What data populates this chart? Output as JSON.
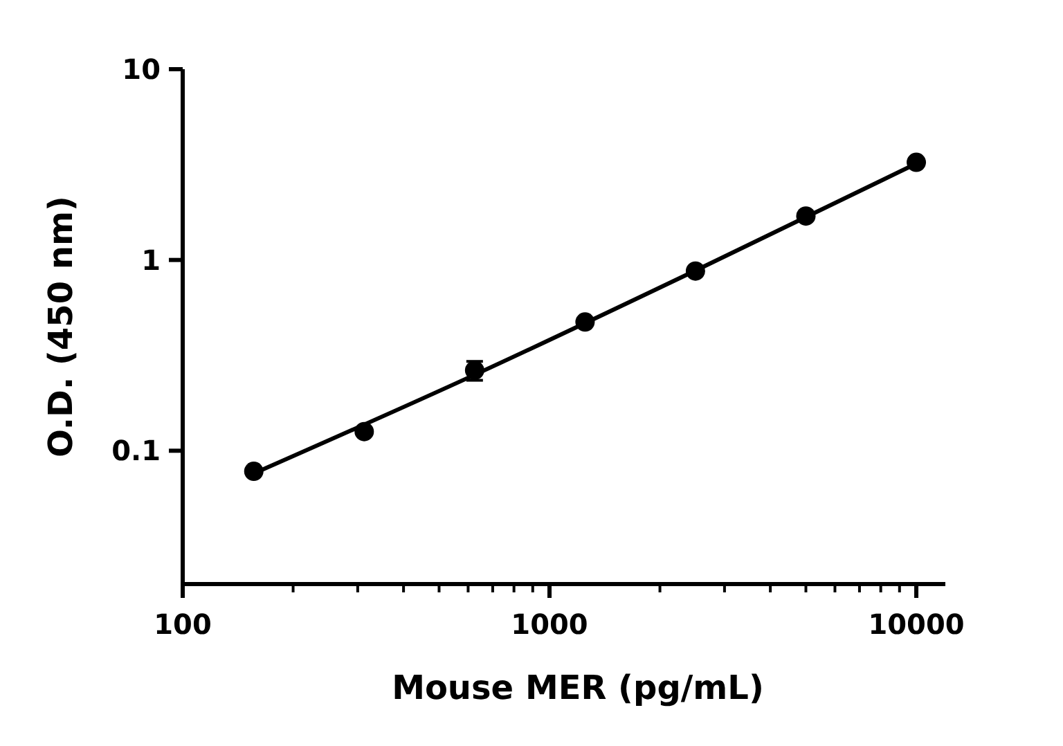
{
  "chart_data": {
    "type": "scatter",
    "xlabel": "Mouse MER (pg/mL)",
    "ylabel": "O.D. (450 nm)",
    "log": "xy",
    "grid": false,
    "xlim": [
      100,
      12000
    ],
    "ylim": [
      0.02,
      10
    ],
    "xticks": [
      100,
      {
        "value": 200,
        "label": null
      },
      {
        "value": 300,
        "label": null
      },
      {
        "value": 400,
        "label": null
      },
      {
        "value": 500,
        "label": null
      },
      {
        "value": 600,
        "label": null
      },
      {
        "value": 700,
        "label": null
      },
      {
        "value": 800,
        "label": null
      },
      {
        "value": 900,
        "label": null
      },
      1000,
      {
        "value": 2000,
        "label": null
      },
      {
        "value": 3000,
        "label": null
      },
      {
        "value": 4000,
        "label": null
      },
      {
        "value": 5000,
        "label": null
      },
      {
        "value": 6000,
        "label": null
      },
      {
        "value": 7000,
        "label": null
      },
      {
        "value": 8000,
        "label": null
      },
      {
        "value": 9000,
        "label": null
      },
      10000
    ],
    "yticks": [
      0.1,
      1,
      10
    ],
    "series": [
      {
        "marker": "circle",
        "color": "#000000",
        "x": [
          156.25,
          312.5,
          625,
          1250,
          2500,
          5000,
          10000
        ],
        "values": [
          0.078,
          0.126,
          0.264,
          0.473,
          0.875,
          1.7,
          3.25
        ],
        "errors": [
          null,
          null,
          0.03,
          null,
          null,
          null,
          null
        ]
      },
      {
        "type": "line",
        "marker": "none",
        "color": "#000000",
        "line_style": "solid",
        "x": [
          156.25,
          625,
          2500,
          10000
        ],
        "values": [
          0.076,
          0.25,
          0.88,
          3.2
        ]
      }
    ]
  }
}
